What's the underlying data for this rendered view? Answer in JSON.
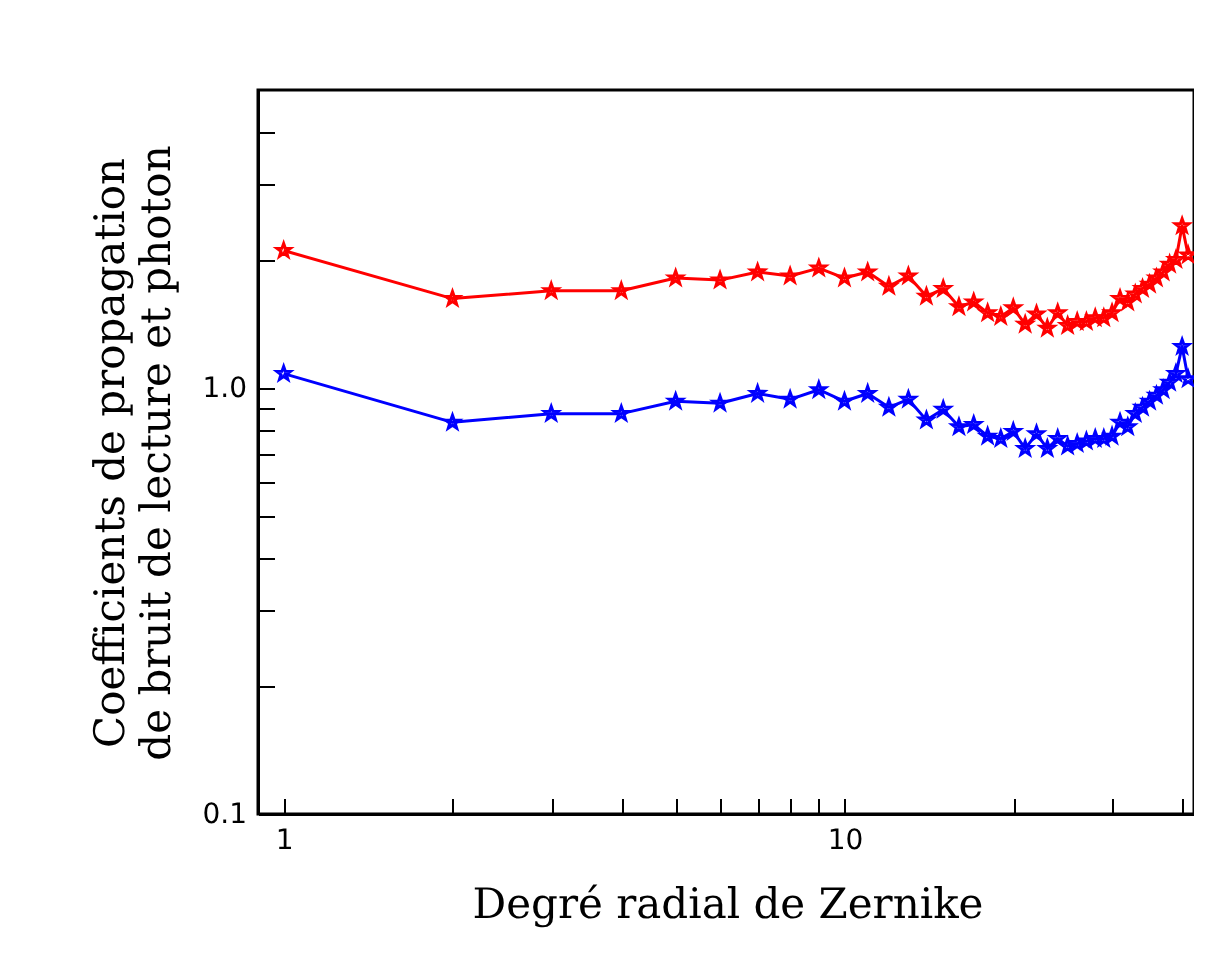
{
  "chart_data": {
    "type": "line",
    "xlabel": "Degré radial de Zernike",
    "ylabel": "Coefficients de propagation de bruit de lecture et photon",
    "log": "xy",
    "marker": "star",
    "line_style": "solid",
    "grid": false,
    "legend": false,
    "x": [
      1,
      2,
      3,
      4,
      5,
      6,
      7,
      8,
      9,
      10,
      11,
      12,
      13,
      14,
      15,
      16,
      17,
      18,
      19,
      20,
      21,
      22,
      23,
      24,
      25,
      26,
      27,
      28,
      29,
      30,
      31,
      32,
      33,
      34,
      35,
      36,
      37,
      38,
      39,
      40,
      41
    ],
    "xlim": [
      0.9,
      42
    ],
    "xticks": [
      1,
      {
        "value": 2,
        "label": null
      },
      {
        "value": 3,
        "label": null
      },
      {
        "value": 4,
        "label": null
      },
      {
        "value": 5,
        "label": null
      },
      {
        "value": 6,
        "label": null
      },
      {
        "value": 7,
        "label": null
      },
      {
        "value": 8,
        "label": null
      },
      {
        "value": 9,
        "label": null
      },
      10,
      {
        "value": 20,
        "label": null
      },
      {
        "value": 30,
        "label": null
      },
      {
        "value": 40,
        "label": null
      }
    ],
    "ylim": [
      0.1,
      5
    ],
    "yticks": [
      0.1,
      {
        "value": 0.2,
        "label": null
      },
      {
        "value": 0.3,
        "label": null
      },
      {
        "value": 0.4,
        "label": null
      },
      {
        "value": 0.5,
        "label": null
      },
      {
        "value": 0.6,
        "label": null
      },
      {
        "value": 0.7,
        "label": null
      },
      {
        "value": 0.8,
        "label": null
      },
      {
        "value": 0.9,
        "label": null
      },
      {
        "value": 1,
        "label": "1.0"
      },
      {
        "value": 2,
        "label": null
      },
      {
        "value": 3,
        "label": null
      },
      {
        "value": 4,
        "label": null
      }
    ],
    "series": [
      {
        "color": "#ff0000",
        "values": [
          2.1,
          1.62,
          1.69,
          1.69,
          1.81,
          1.79,
          1.87,
          1.83,
          1.91,
          1.81,
          1.87,
          1.73,
          1.83,
          1.64,
          1.71,
          1.55,
          1.59,
          1.5,
          1.47,
          1.54,
          1.41,
          1.49,
          1.38,
          1.5,
          1.4,
          1.43,
          1.43,
          1.46,
          1.46,
          1.5,
          1.62,
          1.59,
          1.66,
          1.71,
          1.75,
          1.81,
          1.87,
          1.95,
          2.0,
          2.4,
          2.05
        ]
      },
      {
        "color": "#0000ff",
        "values": [
          1.08,
          0.83,
          0.87,
          0.87,
          0.93,
          0.92,
          0.97,
          0.94,
          0.99,
          0.93,
          0.97,
          0.9,
          0.94,
          0.84,
          0.89,
          0.81,
          0.82,
          0.77,
          0.76,
          0.79,
          0.72,
          0.78,
          0.72,
          0.76,
          0.73,
          0.74,
          0.75,
          0.76,
          0.76,
          0.77,
          0.83,
          0.81,
          0.87,
          0.9,
          0.93,
          0.96,
          0.99,
          1.03,
          1.08,
          1.25,
          1.05
        ]
      }
    ]
  }
}
